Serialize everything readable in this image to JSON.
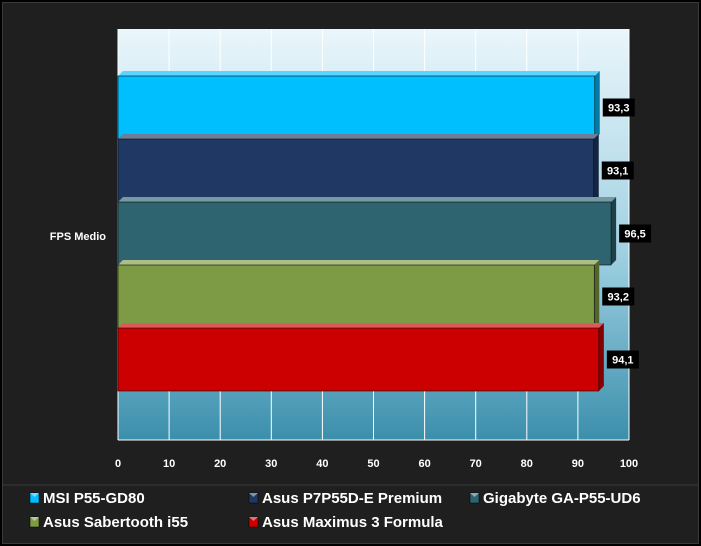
{
  "chart_data": {
    "type": "bar",
    "orientation": "horizontal",
    "categories": [
      "FPS Medio"
    ],
    "series": [
      {
        "name": "MSI P55-GD80",
        "values": [
          93.3
        ],
        "label": "93,3",
        "color": "#00bfff"
      },
      {
        "name": "Asus P7P55D-E Premium",
        "values": [
          93.1
        ],
        "label": "93,1",
        "color": "#1f3864"
      },
      {
        "name": "Gigabyte GA-P55-UD6",
        "values": [
          96.5
        ],
        "label": "96,5",
        "color": "#2e6470"
      },
      {
        "name": "Asus Sabertooth i55",
        "values": [
          93.2
        ],
        "label": "93,2",
        "color": "#7d9b45"
      },
      {
        "name": "Asus Maximus 3 Formula",
        "values": [
          94.1
        ],
        "label": "94,1",
        "color": "#cc0000"
      }
    ],
    "xlim": [
      0,
      100
    ],
    "xticks": [
      0,
      10,
      20,
      30,
      40,
      50,
      60,
      70,
      80,
      90,
      100
    ],
    "xticklabels": [
      "0",
      "10",
      "20",
      "30",
      "40",
      "50",
      "60",
      "70",
      "80",
      "90",
      "100"
    ],
    "title": "",
    "xlabel": "",
    "ylabel": "",
    "grid": true,
    "legend_placement": "bottom",
    "legend_order": [
      0,
      1,
      2,
      3,
      4
    ]
  }
}
